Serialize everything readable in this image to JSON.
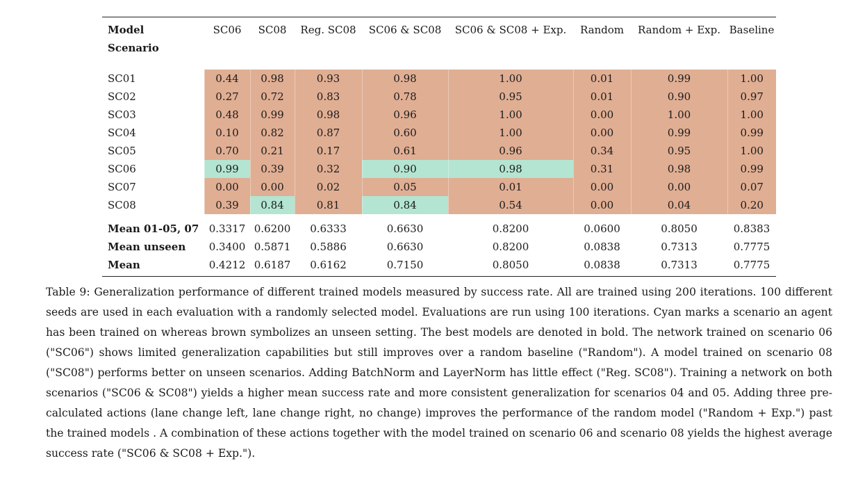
{
  "table": {
    "header_model": "Model",
    "header_scenario": "Scenario",
    "columns": [
      "SC06",
      "SC08",
      "Reg. SC08",
      "SC06 & SC08",
      "SC06 & SC08 + Exp.",
      "Random",
      "Random + Exp.",
      "Baseline"
    ],
    "scenario_rows": [
      {
        "label": "SC01",
        "values": [
          "0.44",
          "0.98",
          "0.93",
          "0.98",
          "1.00",
          "0.01",
          "0.99",
          "1.00"
        ]
      },
      {
        "label": "SC02",
        "values": [
          "0.27",
          "0.72",
          "0.83",
          "0.78",
          "0.95",
          "0.01",
          "0.90",
          "0.97"
        ]
      },
      {
        "label": "SC03",
        "values": [
          "0.48",
          "0.99",
          "0.98",
          "0.96",
          "1.00",
          "0.00",
          "1.00",
          "1.00"
        ]
      },
      {
        "label": "SC04",
        "values": [
          "0.10",
          "0.82",
          "0.87",
          "0.60",
          "1.00",
          "0.00",
          "0.99",
          "0.99"
        ]
      },
      {
        "label": "SC05",
        "values": [
          "0.70",
          "0.21",
          "0.17",
          "0.61",
          "0.96",
          "0.34",
          "0.95",
          "1.00"
        ]
      },
      {
        "label": "SC06",
        "values": [
          "0.99",
          "0.39",
          "0.32",
          "0.90",
          "0.98",
          "0.31",
          "0.98",
          "0.99"
        ]
      },
      {
        "label": "SC07",
        "values": [
          "0.00",
          "0.00",
          "0.02",
          "0.05",
          "0.01",
          "0.00",
          "0.00",
          "0.07"
        ]
      },
      {
        "label": "SC08",
        "values": [
          "0.39",
          "0.84",
          "0.81",
          "0.84",
          "0.54",
          "0.00",
          "0.04",
          "0.20"
        ]
      }
    ],
    "mean_rows": [
      {
        "label": "Mean 01-05, 07",
        "values": [
          "0.3317",
          "0.6200",
          "0.6333",
          "0.6630",
          "0.8200",
          "0.0600",
          "0.8050",
          "0.8383"
        ]
      },
      {
        "label": "Mean unseen",
        "values": [
          "0.3400",
          "0.5871",
          "0.5886",
          "0.6630",
          "0.8200",
          "0.0838",
          "0.7313",
          "0.7775"
        ]
      },
      {
        "label": "Mean",
        "values": [
          "0.4212",
          "0.6187",
          "0.6162",
          "0.7150",
          "0.8050",
          "0.0838",
          "0.7313",
          "0.7775"
        ]
      }
    ],
    "colors": {
      "unseen": "#e0ae93",
      "trained": "#b3e5d2"
    }
  },
  "caption": "Table 9: Generalization performance of different trained models measured by success rate. All are trained using 200 iterations. 100 different seeds are used in each evaluation with a randomly selected model. Evaluations are run using 100 iterations. Cyan marks a scenario an agent has been trained on whereas brown symbolizes an unseen setting. The best models are denoted in bold. The network trained on scenario 06 (\"SC06\") shows limited generalization capabilities but still improves over a random baseline (\"Random\"). A model trained on scenario 08 (\"SC08\") performs better on unseen scenarios. Adding BatchNorm and LayerNorm has little effect (\"Reg. SC08\"). Training a network on both scenarios (\"SC06 & SC08\") yields a higher mean success rate and more consistent generalization for scenarios 04 and 05. Adding three pre-calculated actions (lane change left, lane change right, no change) improves the performance of the random model (\"Random + Exp.\") past the trained models . A combination of these actions together with the model trained on scenario 06 and scenario 08 yields the highest average success rate (\"SC06 & SC08 + Exp.\")."
}
